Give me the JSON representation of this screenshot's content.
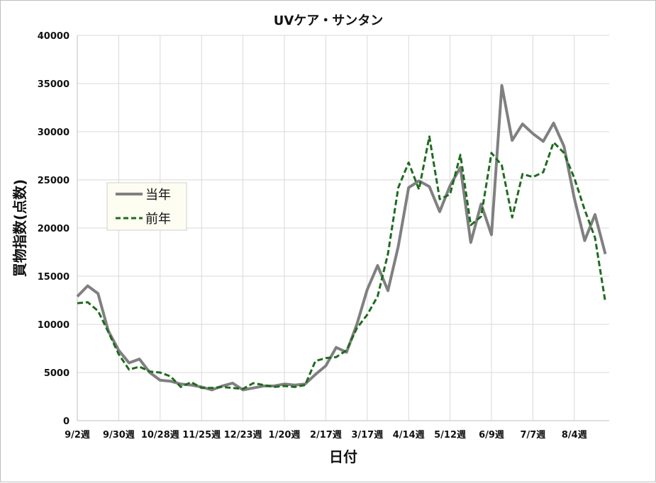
{
  "chart_data": {
    "type": "line",
    "title": "UVケア・サンタン",
    "xlabel": "日付",
    "ylabel": "買物指数(点数)",
    "ylim": [
      0,
      40000
    ],
    "yticks": [
      "0",
      "5000",
      "10000",
      "15000",
      "20000",
      "25000",
      "30000",
      "35000",
      "40000"
    ],
    "x_tick_labels": [
      "9/2週",
      "9/30週",
      "10/28週",
      "11/25週",
      "12/23週",
      "1/20週",
      "2/17週",
      "3/17週",
      "4/14週",
      "5/12週",
      "6/9週",
      "7/7週",
      "8/4週"
    ],
    "grid": "vertical and horizontal",
    "legend": "left-middle",
    "series": [
      {
        "name": "当年",
        "color": "#808080",
        "style": "solid",
        "values": [
          12900,
          14000,
          13200,
          9300,
          7300,
          6000,
          6400,
          5000,
          4200,
          4100,
          3800,
          3700,
          3500,
          3200,
          3600,
          3900,
          3200,
          3400,
          3600,
          3600,
          3800,
          3700,
          3800,
          4800,
          5700,
          7600,
          7100,
          10000,
          13600,
          16100,
          13500,
          18100,
          24200,
          24900,
          24300,
          21700,
          24400,
          26300,
          18500,
          22500,
          19300,
          34800,
          29100,
          30800,
          29800,
          29000,
          30900,
          28500,
          23100,
          18700,
          21400,
          17300
        ]
      },
      {
        "name": "前年",
        "color": "#1e6b1e",
        "style": "dashed",
        "values": [
          12200,
          12300,
          11400,
          9200,
          6900,
          5300,
          5600,
          5100,
          5000,
          4600,
          3500,
          4000,
          3400,
          3400,
          3500,
          3400,
          3300,
          3900,
          3700,
          3500,
          3600,
          3500,
          3700,
          6200,
          6500,
          6600,
          7300,
          9600,
          11000,
          12900,
          17300,
          24200,
          26800,
          24000,
          29500,
          23000,
          23500,
          27600,
          20300,
          21200,
          27800,
          26500,
          21100,
          25600,
          25300,
          25800,
          28900,
          27800,
          25200,
          21900,
          19000,
          12300
        ]
      }
    ]
  }
}
